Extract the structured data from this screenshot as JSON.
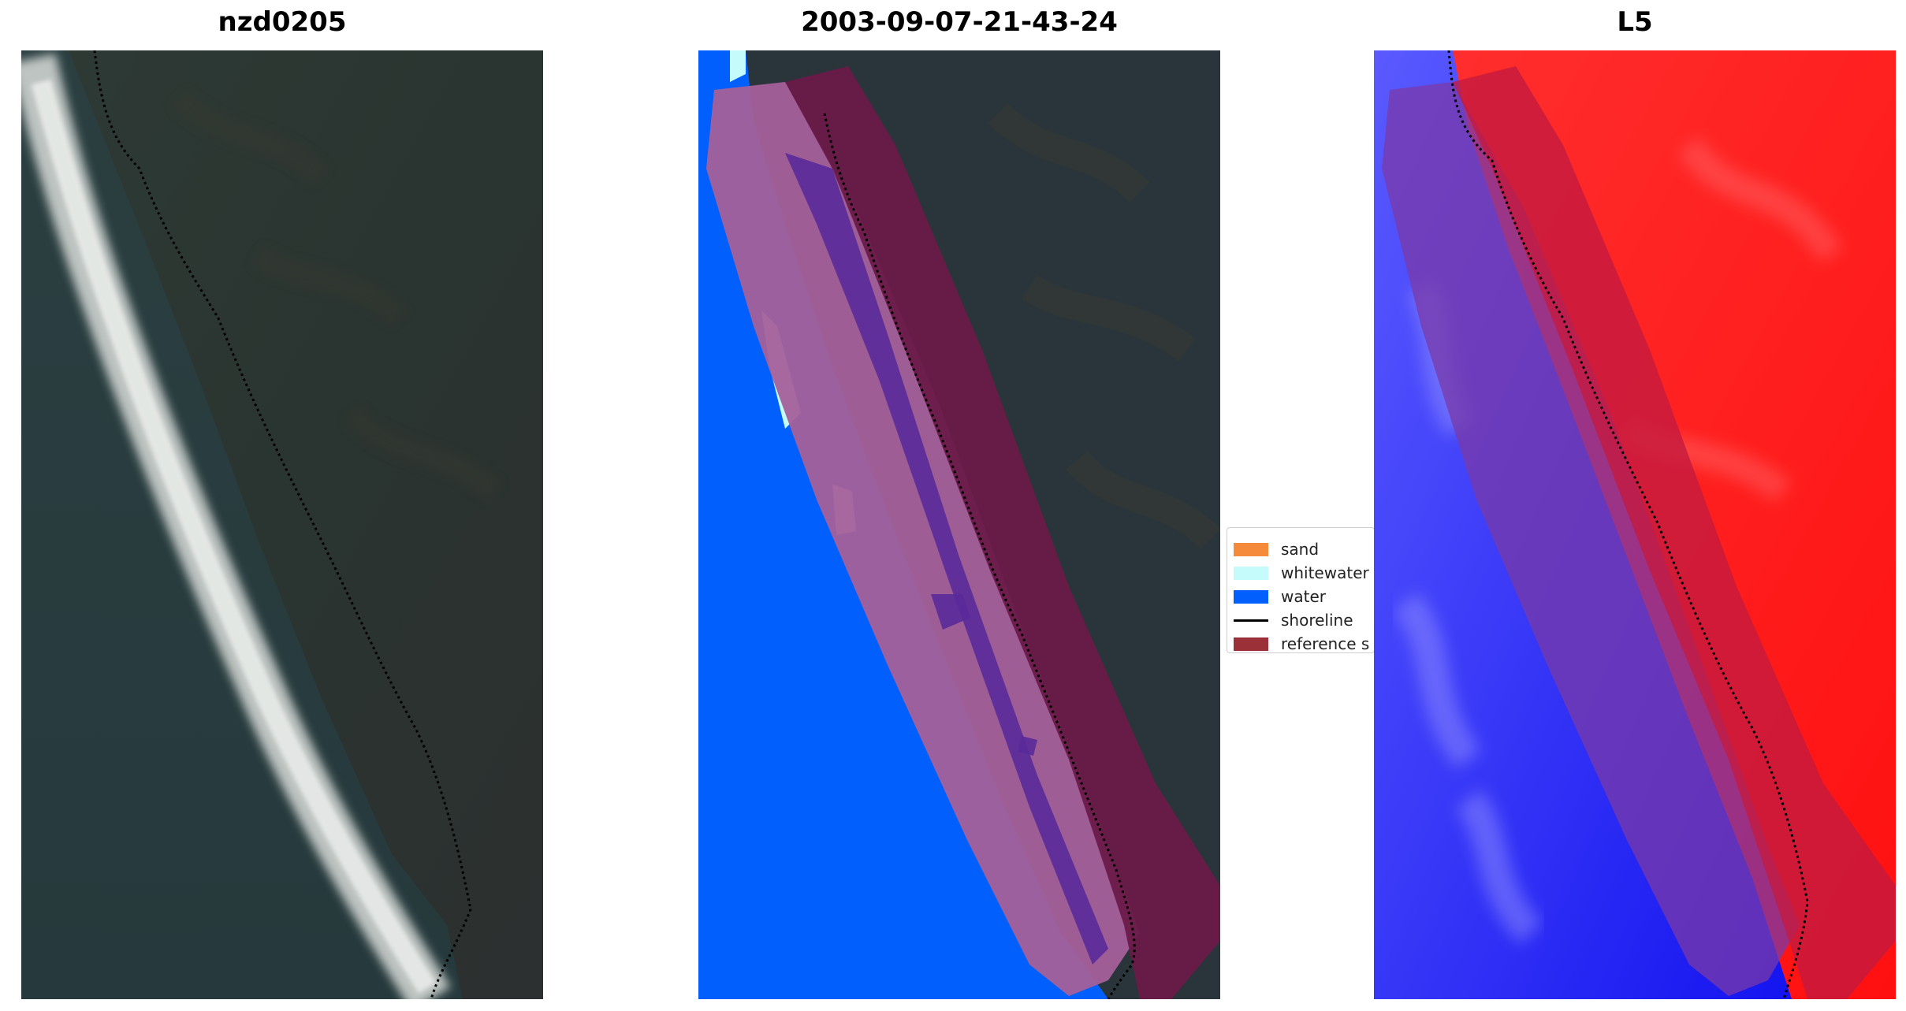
{
  "panels": [
    {
      "title": "nzd0205"
    },
    {
      "title": "2003-09-07-21-43-24"
    },
    {
      "title": "L5"
    }
  ],
  "legend": {
    "items": [
      {
        "label": "sand",
        "color": "#f58a3a"
      },
      {
        "label": "whitewater",
        "color": "#c6fbfb"
      },
      {
        "label": "water",
        "color": "#005ffd"
      },
      {
        "label": "shoreline",
        "color": "#000000"
      },
      {
        "label": "reference s",
        "color": "#9b3038"
      }
    ]
  },
  "colors": {
    "land_dark": "#253234",
    "water_blue": "#005ffd",
    "buffer_purple": "#a5609a",
    "buffer_maroon": "#6a1a48",
    "index_red": "#ff1a1a",
    "index_blue": "#1a1aff"
  }
}
